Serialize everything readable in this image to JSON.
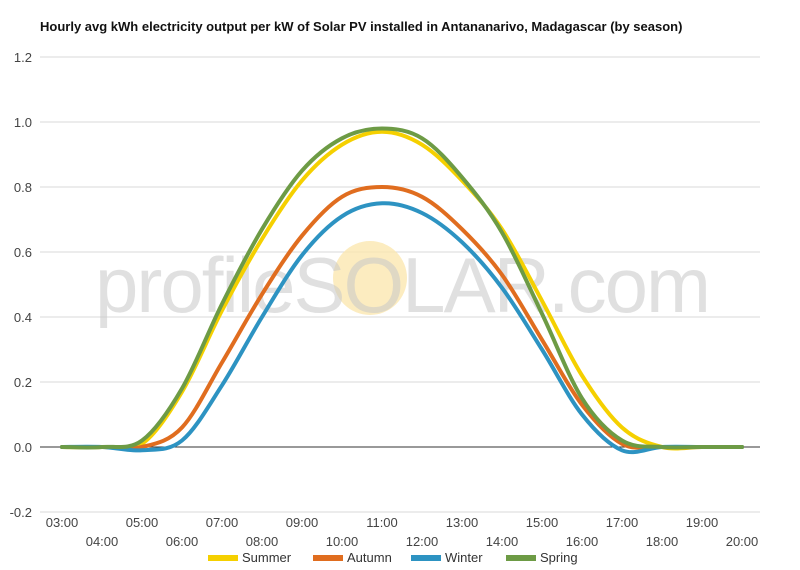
{
  "chart_data": {
    "type": "line",
    "title": "Hourly avg kWh electricity output per kW of Solar PV installed in Antananarivo, Madagascar (by season)",
    "xlabel": "",
    "ylabel": "",
    "ylim": [
      -0.2,
      1.2
    ],
    "yticks": [
      "1.2",
      "1.0",
      "0.8",
      "0.6",
      "0.4",
      "0.2",
      "0.0",
      "-0.2"
    ],
    "ytick_values": [
      1.2,
      1.0,
      0.8,
      0.6,
      0.4,
      0.2,
      0.0,
      -0.2
    ],
    "x": [
      "03:00",
      "04:00",
      "05:00",
      "06:00",
      "07:00",
      "08:00",
      "09:00",
      "10:00",
      "11:00",
      "12:00",
      "13:00",
      "14:00",
      "15:00",
      "16:00",
      "17:00",
      "18:00",
      "19:00",
      "20:00"
    ],
    "grid": true,
    "legend_position": "bottom",
    "watermark": "profileSOLAR.com",
    "series": [
      {
        "name": "Summer",
        "color": "#f5d000",
        "values": [
          0,
          0,
          0.01,
          0.17,
          0.42,
          0.64,
          0.82,
          0.93,
          0.97,
          0.93,
          0.82,
          0.67,
          0.45,
          0.22,
          0.06,
          0.0,
          0,
          0
        ]
      },
      {
        "name": "Autumn",
        "color": "#e06d1f",
        "values": [
          0,
          0,
          0.0,
          0.06,
          0.26,
          0.47,
          0.65,
          0.77,
          0.8,
          0.77,
          0.67,
          0.53,
          0.33,
          0.13,
          0.01,
          0.0,
          0,
          0
        ]
      },
      {
        "name": "Winter",
        "color": "#2d93c2",
        "values": [
          0,
          0,
          -0.01,
          0.02,
          0.19,
          0.4,
          0.59,
          0.71,
          0.75,
          0.72,
          0.63,
          0.49,
          0.3,
          0.1,
          -0.01,
          0.0,
          0,
          0
        ]
      },
      {
        "name": "Spring",
        "color": "#6d9b45",
        "values": [
          0,
          0,
          0.02,
          0.18,
          0.44,
          0.67,
          0.85,
          0.95,
          0.98,
          0.95,
          0.83,
          0.66,
          0.41,
          0.15,
          0.02,
          0.0,
          0,
          0
        ]
      }
    ]
  }
}
